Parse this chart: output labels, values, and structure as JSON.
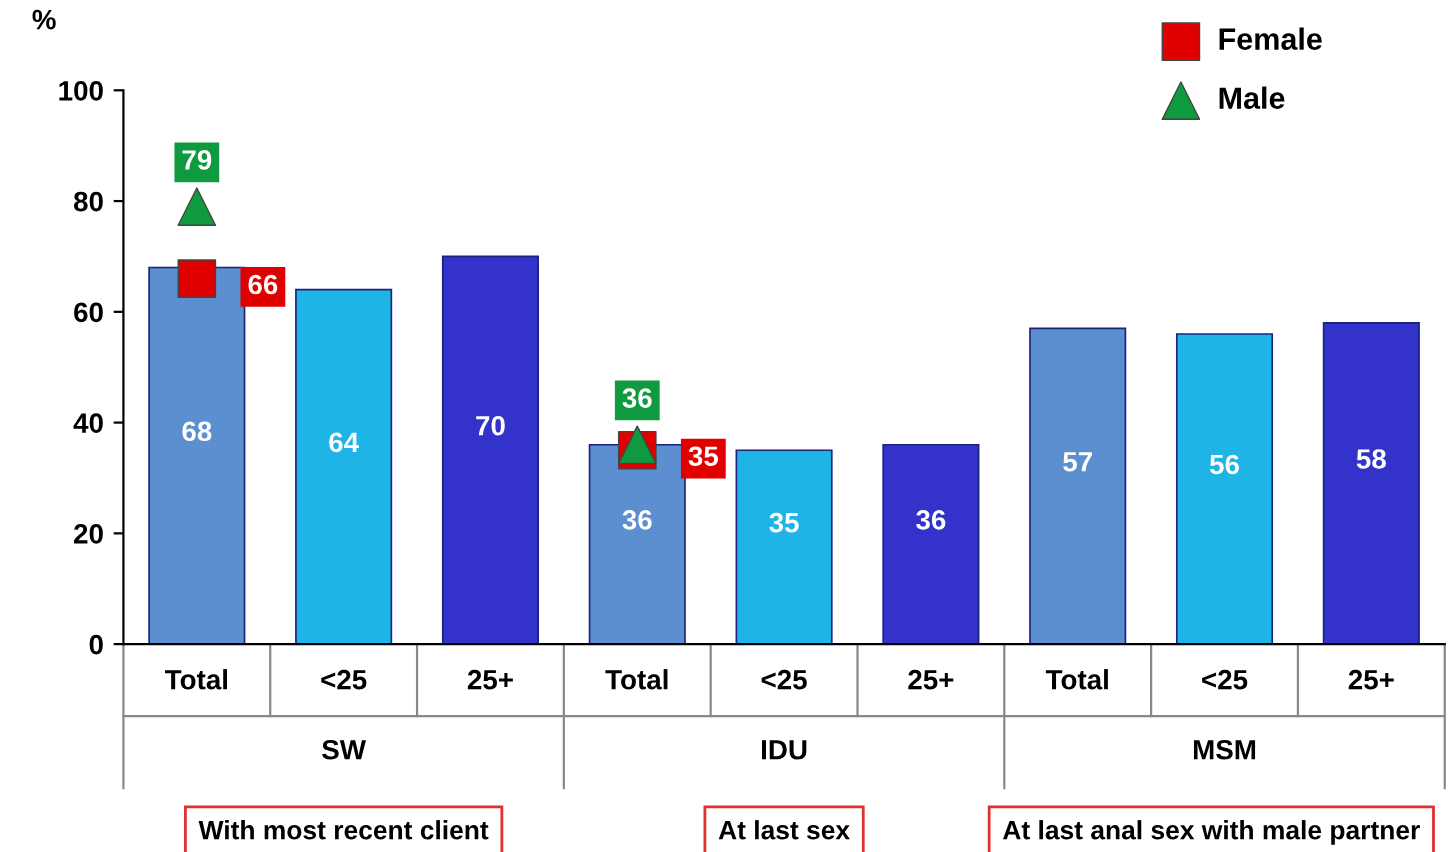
{
  "chart_data": {
    "type": "bar",
    "ylabel": "%",
    "categories": [
      "Total",
      "<25",
      "25+",
      "Total",
      "<25",
      "25+",
      "Total",
      "<25",
      "25+"
    ],
    "series": [
      {
        "colors": [
          "#5b8fd0",
          "#1eb4e6",
          "#3333cc",
          "#5b8fd0",
          "#1eb4e6",
          "#3333cc",
          "#5b8fd0",
          "#1eb4e6",
          "#3333cc"
        ],
        "values": [
          68,
          64,
          70,
          36,
          35,
          36,
          57,
          56,
          58
        ]
      },
      {
        "type": "scatter",
        "name": "Female",
        "color": "#e00000",
        "marker": "square",
        "values": [
          66,
          null,
          null,
          35,
          null,
          null,
          null,
          null,
          null
        ]
      },
      {
        "type": "scatter",
        "name": "Male",
        "color": "#109a40",
        "marker": "triangle",
        "values": [
          79,
          null,
          null,
          36,
          null,
          null,
          null,
          null,
          null
        ]
      }
    ],
    "data_labels": true,
    "ylim": [
      0,
      100
    ],
    "yticks": [
      0,
      20,
      40,
      60,
      80,
      100
    ],
    "grid": false,
    "legend": "top right",
    "annotations": [
      "SW",
      "IDU",
      "MSM",
      "With most recent client",
      "At last sex",
      "At last anal sex with male partner"
    ]
  }
}
